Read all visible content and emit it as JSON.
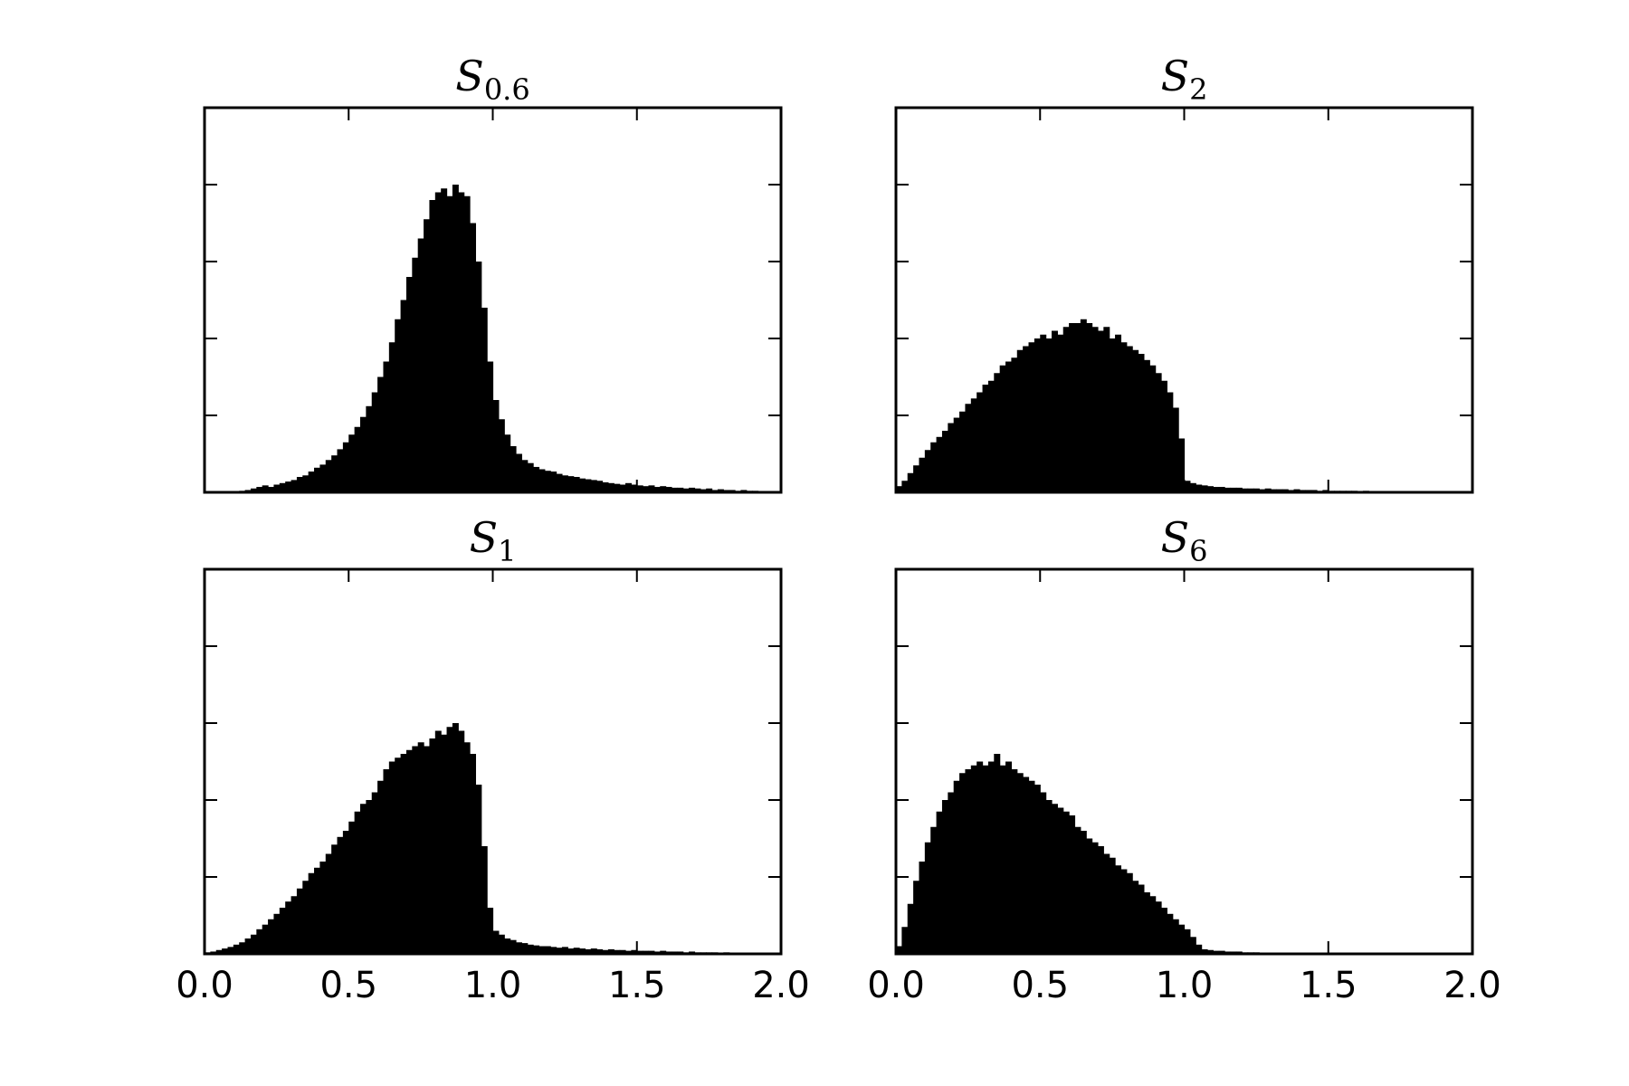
{
  "chart_data": [
    {
      "type": "bar",
      "title": "S",
      "title_subscript": "0.6",
      "xlim": [
        0,
        2
      ],
      "ylim": [
        0,
        5
      ],
      "xticks": [
        "0.0",
        "0.5",
        "1.0",
        "1.5",
        "2.0"
      ],
      "xtick_labels_visible": false,
      "yticks": [
        0,
        1,
        2,
        3,
        4,
        5
      ],
      "ytick_labels_visible": false,
      "bin_width": 0.02,
      "x": [
        0.1,
        0.12,
        0.14,
        0.16,
        0.18,
        0.2,
        0.22,
        0.24,
        0.26,
        0.28,
        0.3,
        0.32,
        0.34,
        0.36,
        0.38,
        0.4,
        0.42,
        0.44,
        0.46,
        0.48,
        0.5,
        0.52,
        0.54,
        0.56,
        0.58,
        0.6,
        0.62,
        0.64,
        0.66,
        0.68,
        0.7,
        0.72,
        0.74,
        0.76,
        0.78,
        0.8,
        0.82,
        0.84,
        0.86,
        0.88,
        0.9,
        0.92,
        0.94,
        0.96,
        0.98,
        1.0,
        1.02,
        1.04,
        1.06,
        1.08,
        1.1,
        1.12,
        1.14,
        1.16,
        1.18,
        1.2,
        1.22,
        1.24,
        1.26,
        1.28,
        1.3,
        1.32,
        1.34,
        1.36,
        1.38,
        1.4,
        1.42,
        1.44,
        1.46,
        1.48,
        1.5,
        1.52,
        1.54,
        1.56,
        1.58,
        1.6,
        1.62,
        1.64,
        1.66,
        1.68,
        1.7,
        1.72,
        1.74,
        1.76,
        1.78,
        1.8,
        1.82,
        1.84,
        1.86,
        1.88,
        1.9,
        1.92,
        1.94
      ],
      "values": [
        0.01,
        0.02,
        0.03,
        0.05,
        0.07,
        0.09,
        0.07,
        0.1,
        0.12,
        0.14,
        0.16,
        0.2,
        0.22,
        0.27,
        0.32,
        0.36,
        0.42,
        0.48,
        0.56,
        0.65,
        0.75,
        0.85,
        0.98,
        1.12,
        1.3,
        1.5,
        1.7,
        1.95,
        2.25,
        2.5,
        2.8,
        3.05,
        3.3,
        3.55,
        3.8,
        3.9,
        3.95,
        3.85,
        4.0,
        3.9,
        3.85,
        3.5,
        3.0,
        2.4,
        1.7,
        1.2,
        0.95,
        0.75,
        0.6,
        0.5,
        0.42,
        0.38,
        0.33,
        0.3,
        0.28,
        0.27,
        0.24,
        0.22,
        0.21,
        0.2,
        0.18,
        0.17,
        0.16,
        0.15,
        0.13,
        0.12,
        0.11,
        0.1,
        0.12,
        0.1,
        0.09,
        0.08,
        0.09,
        0.07,
        0.08,
        0.07,
        0.06,
        0.06,
        0.05,
        0.06,
        0.05,
        0.04,
        0.05,
        0.03,
        0.04,
        0.03,
        0.03,
        0.02,
        0.03,
        0.02,
        0.02,
        0.01,
        0.01
      ]
    },
    {
      "type": "bar",
      "title": "S",
      "title_subscript": "2",
      "xlim": [
        0,
        2
      ],
      "ylim": [
        0,
        5
      ],
      "xticks": [
        "0.0",
        "0.5",
        "1.0",
        "1.5",
        "2.0"
      ],
      "xtick_labels_visible": false,
      "yticks": [
        0,
        1,
        2,
        3,
        4,
        5
      ],
      "ytick_labels_visible": false,
      "bin_width": 0.02,
      "x": [
        0.0,
        0.02,
        0.04,
        0.06,
        0.08,
        0.1,
        0.12,
        0.14,
        0.16,
        0.18,
        0.2,
        0.22,
        0.24,
        0.26,
        0.28,
        0.3,
        0.32,
        0.34,
        0.36,
        0.38,
        0.4,
        0.42,
        0.44,
        0.46,
        0.48,
        0.5,
        0.52,
        0.54,
        0.56,
        0.58,
        0.6,
        0.62,
        0.64,
        0.66,
        0.68,
        0.7,
        0.72,
        0.74,
        0.76,
        0.78,
        0.8,
        0.82,
        0.84,
        0.86,
        0.88,
        0.9,
        0.92,
        0.94,
        0.96,
        0.98,
        1.0,
        1.02,
        1.04,
        1.06,
        1.08,
        1.1,
        1.12,
        1.14,
        1.16,
        1.18,
        1.2,
        1.22,
        1.24,
        1.26,
        1.28,
        1.3,
        1.32,
        1.34,
        1.36,
        1.38,
        1.4,
        1.42,
        1.44,
        1.46,
        1.48,
        1.5,
        1.52,
        1.54,
        1.56,
        1.58,
        1.6,
        1.62,
        1.64,
        1.66,
        1.68,
        1.7,
        1.72,
        1.74,
        1.76
      ],
      "values": [
        0.08,
        0.15,
        0.25,
        0.35,
        0.45,
        0.55,
        0.65,
        0.72,
        0.8,
        0.9,
        0.97,
        1.05,
        1.15,
        1.22,
        1.3,
        1.4,
        1.45,
        1.55,
        1.65,
        1.7,
        1.75,
        1.85,
        1.9,
        1.95,
        2.0,
        2.05,
        2.0,
        2.1,
        2.05,
        2.15,
        2.2,
        2.2,
        2.25,
        2.2,
        2.15,
        2.1,
        2.15,
        2.0,
        2.05,
        1.95,
        1.9,
        1.85,
        1.8,
        1.72,
        1.65,
        1.55,
        1.45,
        1.3,
        1.1,
        0.7,
        0.15,
        0.12,
        0.1,
        0.09,
        0.08,
        0.07,
        0.07,
        0.06,
        0.06,
        0.06,
        0.05,
        0.05,
        0.05,
        0.04,
        0.05,
        0.04,
        0.04,
        0.04,
        0.03,
        0.04,
        0.03,
        0.03,
        0.03,
        0.02,
        0.03,
        0.02,
        0.02,
        0.02,
        0.02,
        0.02,
        0.01,
        0.02,
        0.01,
        0.01,
        0.01,
        0.01,
        0.01,
        0.01,
        0.01
      ]
    },
    {
      "type": "bar",
      "title": "S",
      "title_subscript": "1",
      "xlim": [
        0,
        2
      ],
      "ylim": [
        0,
        5
      ],
      "xticks": [
        "0.0",
        "0.5",
        "1.0",
        "1.5",
        "2.0"
      ],
      "xtick_labels_visible": true,
      "yticks": [
        0,
        1,
        2,
        3,
        4,
        5
      ],
      "ytick_labels_visible": false,
      "bin_width": 0.02,
      "x": [
        0.0,
        0.02,
        0.04,
        0.06,
        0.08,
        0.1,
        0.12,
        0.14,
        0.16,
        0.18,
        0.2,
        0.22,
        0.24,
        0.26,
        0.28,
        0.3,
        0.32,
        0.34,
        0.36,
        0.38,
        0.4,
        0.42,
        0.44,
        0.46,
        0.48,
        0.5,
        0.52,
        0.54,
        0.56,
        0.58,
        0.6,
        0.62,
        0.64,
        0.66,
        0.68,
        0.7,
        0.72,
        0.74,
        0.76,
        0.78,
        0.8,
        0.82,
        0.84,
        0.86,
        0.88,
        0.9,
        0.92,
        0.94,
        0.96,
        0.98,
        1.0,
        1.02,
        1.04,
        1.06,
        1.08,
        1.1,
        1.12,
        1.14,
        1.16,
        1.18,
        1.2,
        1.22,
        1.24,
        1.26,
        1.28,
        1.3,
        1.32,
        1.34,
        1.36,
        1.38,
        1.4,
        1.42,
        1.44,
        1.46,
        1.48,
        1.5,
        1.52,
        1.54,
        1.56,
        1.58,
        1.6,
        1.62,
        1.64,
        1.66,
        1.68,
        1.7,
        1.72,
        1.74,
        1.76,
        1.78,
        1.8,
        1.82,
        1.84,
        1.86,
        1.88
      ],
      "values": [
        0.02,
        0.03,
        0.05,
        0.07,
        0.09,
        0.12,
        0.15,
        0.2,
        0.25,
        0.32,
        0.38,
        0.45,
        0.52,
        0.6,
        0.68,
        0.75,
        0.85,
        0.95,
        1.05,
        1.12,
        1.2,
        1.3,
        1.42,
        1.52,
        1.6,
        1.72,
        1.85,
        1.95,
        2.0,
        2.1,
        2.25,
        2.4,
        2.5,
        2.55,
        2.6,
        2.65,
        2.7,
        2.75,
        2.7,
        2.8,
        2.9,
        2.85,
        2.95,
        3.0,
        2.9,
        2.75,
        2.6,
        2.2,
        1.4,
        0.6,
        0.3,
        0.25,
        0.2,
        0.18,
        0.15,
        0.14,
        0.12,
        0.11,
        0.1,
        0.1,
        0.09,
        0.08,
        0.09,
        0.07,
        0.08,
        0.07,
        0.06,
        0.07,
        0.06,
        0.05,
        0.06,
        0.05,
        0.05,
        0.04,
        0.05,
        0.04,
        0.04,
        0.04,
        0.03,
        0.04,
        0.03,
        0.03,
        0.03,
        0.02,
        0.03,
        0.02,
        0.02,
        0.02,
        0.02,
        0.01,
        0.02,
        0.01,
        0.01,
        0.01,
        0.01
      ]
    },
    {
      "type": "bar",
      "title": "S",
      "title_subscript": "6",
      "xlim": [
        0,
        2
      ],
      "ylim": [
        0,
        5
      ],
      "xticks": [
        "0.0",
        "0.5",
        "1.0",
        "1.5",
        "2.0"
      ],
      "xtick_labels_visible": true,
      "yticks": [
        0,
        1,
        2,
        3,
        4,
        5
      ],
      "ytick_labels_visible": false,
      "bin_width": 0.02,
      "x": [
        0.0,
        0.02,
        0.04,
        0.06,
        0.08,
        0.1,
        0.12,
        0.14,
        0.16,
        0.18,
        0.2,
        0.22,
        0.24,
        0.26,
        0.28,
        0.3,
        0.32,
        0.34,
        0.36,
        0.38,
        0.4,
        0.42,
        0.44,
        0.46,
        0.48,
        0.5,
        0.52,
        0.54,
        0.56,
        0.58,
        0.6,
        0.62,
        0.64,
        0.66,
        0.68,
        0.7,
        0.72,
        0.74,
        0.76,
        0.78,
        0.8,
        0.82,
        0.84,
        0.86,
        0.88,
        0.9,
        0.92,
        0.94,
        0.96,
        0.98,
        1.0,
        1.02,
        1.04,
        1.06,
        1.08,
        1.1,
        1.12,
        1.14,
        1.16,
        1.18,
        1.2,
        1.22,
        1.24,
        1.26,
        1.28
      ],
      "values": [
        0.1,
        0.35,
        0.65,
        0.95,
        1.2,
        1.45,
        1.65,
        1.85,
        2.0,
        2.1,
        2.25,
        2.35,
        2.4,
        2.45,
        2.5,
        2.45,
        2.5,
        2.6,
        2.45,
        2.5,
        2.4,
        2.35,
        2.3,
        2.25,
        2.2,
        2.1,
        2.0,
        1.95,
        1.9,
        1.85,
        1.8,
        1.65,
        1.6,
        1.5,
        1.45,
        1.4,
        1.3,
        1.25,
        1.15,
        1.1,
        1.05,
        0.95,
        0.9,
        0.8,
        0.75,
        0.68,
        0.6,
        0.52,
        0.45,
        0.38,
        0.32,
        0.22,
        0.12,
        0.06,
        0.05,
        0.04,
        0.04,
        0.03,
        0.03,
        0.03,
        0.02,
        0.02,
        0.02,
        0.01,
        0.01
      ]
    }
  ]
}
